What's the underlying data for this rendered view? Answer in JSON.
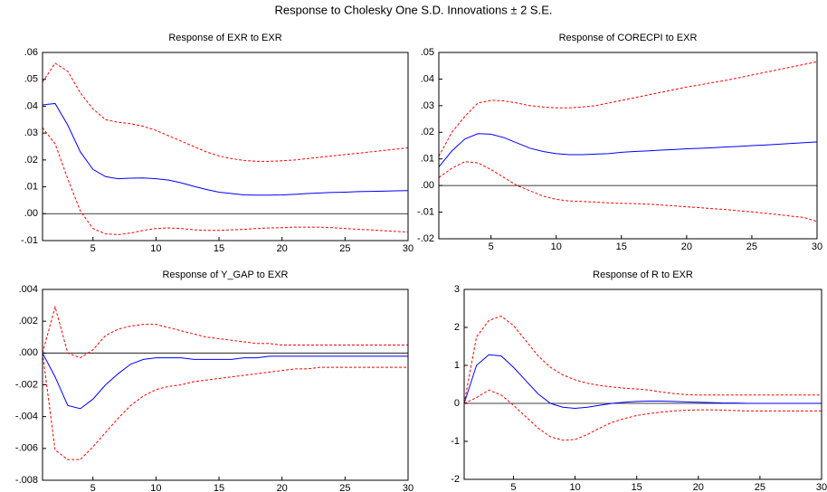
{
  "title": "Response to Cholesky One S.D. Innovations ± 2 S.E.",
  "chart_data": [
    {
      "type": "line",
      "title": "Response of EXR to EXR",
      "x": [
        1,
        2,
        3,
        4,
        5,
        6,
        7,
        8,
        9,
        10,
        11,
        12,
        13,
        14,
        15,
        16,
        17,
        18,
        19,
        20,
        21,
        22,
        23,
        24,
        25,
        26,
        27,
        28,
        29,
        30
      ],
      "xlim": [
        1,
        30
      ],
      "xticks": [
        5,
        10,
        15,
        20,
        25,
        30
      ],
      "ylim": [
        -0.01,
        0.06
      ],
      "yticks": [
        {
          "value": -0.01,
          "label": "-.01"
        },
        {
          "value": 0,
          "label": ".00"
        },
        {
          "value": 0.01,
          "label": ".01"
        },
        {
          "value": 0.02,
          "label": ".02"
        },
        {
          "value": 0.03,
          "label": ".03"
        },
        {
          "value": 0.04,
          "label": ".04"
        },
        {
          "value": 0.05,
          "label": ".05"
        },
        {
          "value": 0.06,
          "label": ".06"
        }
      ],
      "zero_line": true,
      "series": [
        {
          "color": "#0000ff",
          "dash": false,
          "values": [
            0.0405,
            0.041,
            0.033,
            0.023,
            0.0165,
            0.0138,
            0.013,
            0.0132,
            0.0133,
            0.013,
            0.0125,
            0.0115,
            0.0102,
            0.009,
            0.008,
            0.0075,
            0.007,
            0.0069,
            0.0069,
            0.007,
            0.0072,
            0.0075,
            0.0077,
            0.0079,
            0.008,
            0.0082,
            0.0083,
            0.0084,
            0.0085,
            0.0086
          ]
        },
        {
          "color": "#ff0000",
          "dash": true,
          "values": [
            0.049,
            0.056,
            0.053,
            0.045,
            0.039,
            0.035,
            0.034,
            0.0335,
            0.0325,
            0.031,
            0.029,
            0.027,
            0.025,
            0.023,
            0.0215,
            0.0205,
            0.0198,
            0.0195,
            0.0195,
            0.0197,
            0.02,
            0.0205,
            0.021,
            0.0215,
            0.022,
            0.0225,
            0.023,
            0.0235,
            0.024,
            0.0245
          ]
        },
        {
          "color": "#ff0000",
          "dash": true,
          "values": [
            0.032,
            0.026,
            0.013,
            0.001,
            -0.0055,
            -0.0075,
            -0.0078,
            -0.0072,
            -0.0062,
            -0.0055,
            -0.0053,
            -0.0055,
            -0.006,
            -0.0062,
            -0.0062,
            -0.006,
            -0.0058,
            -0.0055,
            -0.0053,
            -0.0052,
            -0.005,
            -0.005,
            -0.005,
            -0.0052,
            -0.0055,
            -0.0058,
            -0.006,
            -0.0063,
            -0.0066,
            -0.0068
          ]
        }
      ]
    },
    {
      "type": "line",
      "title": "Response of CORECPI to EXR",
      "x": [
        1,
        2,
        3,
        4,
        5,
        6,
        7,
        8,
        9,
        10,
        11,
        12,
        13,
        14,
        15,
        16,
        17,
        18,
        19,
        20,
        21,
        22,
        23,
        24,
        25,
        26,
        27,
        28,
        29,
        30
      ],
      "xlim": [
        1,
        30
      ],
      "xticks": [
        5,
        10,
        15,
        20,
        25,
        30
      ],
      "ylim": [
        -0.02,
        0.05
      ],
      "yticks": [
        {
          "value": -0.02,
          "label": "-.02"
        },
        {
          "value": -0.01,
          "label": "-.01"
        },
        {
          "value": 0,
          "label": ".00"
        },
        {
          "value": 0.01,
          "label": ".01"
        },
        {
          "value": 0.02,
          "label": ".02"
        },
        {
          "value": 0.03,
          "label": ".03"
        },
        {
          "value": 0.04,
          "label": ".04"
        },
        {
          "value": 0.05,
          "label": ".05"
        }
      ],
      "zero_line": true,
      "series": [
        {
          "color": "#0000ff",
          "dash": false,
          "values": [
            0.007,
            0.013,
            0.0175,
            0.0195,
            0.0193,
            0.018,
            0.016,
            0.014,
            0.0128,
            0.012,
            0.0116,
            0.0116,
            0.0118,
            0.012,
            0.0125,
            0.0128,
            0.013,
            0.0133,
            0.0135,
            0.0138,
            0.014,
            0.0142,
            0.0145,
            0.0147,
            0.015,
            0.0152,
            0.0155,
            0.0158,
            0.0161,
            0.0164
          ]
        },
        {
          "color": "#ff0000",
          "dash": true,
          "values": [
            0.011,
            0.02,
            0.026,
            0.031,
            0.032,
            0.0318,
            0.031,
            0.03,
            0.0295,
            0.0292,
            0.0292,
            0.0295,
            0.03,
            0.031,
            0.032,
            0.033,
            0.034,
            0.035,
            0.036,
            0.037,
            0.0378,
            0.0387,
            0.0395,
            0.0405,
            0.0415,
            0.0425,
            0.0435,
            0.0445,
            0.0455,
            0.0465
          ]
        },
        {
          "color": "#ff0000",
          "dash": true,
          "values": [
            0.003,
            0.0065,
            0.009,
            0.0085,
            0.006,
            0.003,
            0.0,
            -0.002,
            -0.004,
            -0.0052,
            -0.0058,
            -0.006,
            -0.0062,
            -0.0065,
            -0.0067,
            -0.0068,
            -0.007,
            -0.0073,
            -0.0076,
            -0.008,
            -0.0083,
            -0.0087,
            -0.009,
            -0.0095,
            -0.0099,
            -0.0104,
            -0.0109,
            -0.0115,
            -0.012,
            -0.0135
          ]
        }
      ]
    },
    {
      "type": "line",
      "title": "Response of Y_GAP to EXR",
      "x": [
        1,
        2,
        3,
        4,
        5,
        6,
        7,
        8,
        9,
        10,
        11,
        12,
        13,
        14,
        15,
        16,
        17,
        18,
        19,
        20,
        21,
        22,
        23,
        24,
        25,
        26,
        27,
        28,
        29,
        30
      ],
      "xlim": [
        1,
        30
      ],
      "xticks": [
        5,
        10,
        15,
        20,
        25,
        30
      ],
      "ylim": [
        -0.008,
        0.004
      ],
      "yticks": [
        {
          "value": -0.008,
          "label": "-.008"
        },
        {
          "value": -0.006,
          "label": "-.006"
        },
        {
          "value": -0.004,
          "label": "-.004"
        },
        {
          "value": -0.002,
          "label": "-.002"
        },
        {
          "value": 0,
          "label": ".000"
        },
        {
          "value": 0.002,
          "label": ".002"
        },
        {
          "value": 0.004,
          "label": ".004"
        }
      ],
      "zero_line": true,
      "series": [
        {
          "color": "#0000ff",
          "dash": false,
          "values": [
            0.0,
            -0.0015,
            -0.0033,
            -0.0035,
            -0.0029,
            -0.002,
            -0.0013,
            -0.0007,
            -0.0004,
            -0.0003,
            -0.0003,
            -0.0003,
            -0.0004,
            -0.0004,
            -0.0004,
            -0.0004,
            -0.0003,
            -0.0003,
            -0.0002,
            -0.0002,
            -0.0002,
            -0.0002,
            -0.0002,
            -0.0002,
            -0.0002,
            -0.0002,
            -0.0002,
            -0.0002,
            -0.0002,
            -0.0002
          ]
        },
        {
          "color": "#ff0000",
          "dash": true,
          "values": [
            0.0,
            0.0029,
            0.0,
            -0.0003,
            0.0002,
            0.0011,
            0.0015,
            0.0017,
            0.0018,
            0.0018,
            0.0016,
            0.0014,
            0.0012,
            0.001,
            0.0009,
            0.0008,
            0.0007,
            0.0006,
            0.0006,
            0.0005,
            0.0005,
            0.0005,
            0.0005,
            0.0005,
            0.0005,
            0.0005,
            0.0005,
            0.0005,
            0.0005,
            0.0005
          ]
        },
        {
          "color": "#ff0000",
          "dash": true,
          "values": [
            0.0,
            -0.0061,
            -0.0067,
            -0.0067,
            -0.0059,
            -0.005,
            -0.0041,
            -0.0033,
            -0.0027,
            -0.0023,
            -0.0021,
            -0.002,
            -0.0018,
            -0.0017,
            -0.0016,
            -0.0015,
            -0.0014,
            -0.0013,
            -0.0012,
            -0.0011,
            -0.001,
            -0.001,
            -0.0009,
            -0.0009,
            -0.0009,
            -0.0009,
            -0.0009,
            -0.0009,
            -0.0009,
            -0.0009
          ]
        }
      ]
    },
    {
      "type": "line",
      "title": "Response of R to EXR",
      "x": [
        1,
        2,
        3,
        4,
        5,
        6,
        7,
        8,
        9,
        10,
        11,
        12,
        13,
        14,
        15,
        16,
        17,
        18,
        19,
        20,
        21,
        22,
        23,
        24,
        25,
        26,
        27,
        28,
        29,
        30
      ],
      "xlim": [
        1,
        30
      ],
      "xticks": [
        5,
        10,
        15,
        20,
        25,
        30
      ],
      "ylim": [
        -2,
        3
      ],
      "yticks": [
        -2,
        -1,
        0,
        1,
        2,
        3
      ],
      "zero_line": true,
      "series": [
        {
          "color": "#0000ff",
          "dash": false,
          "values": [
            0,
            1.0,
            1.28,
            1.25,
            0.95,
            0.6,
            0.25,
            0.0,
            -0.1,
            -0.13,
            -0.1,
            -0.05,
            0.0,
            0.03,
            0.05,
            0.06,
            0.06,
            0.05,
            0.04,
            0.03,
            0.02,
            0.01,
            0.01,
            0.0,
            0.0,
            0.0,
            0.0,
            0.0,
            0.0,
            0.0
          ]
        },
        {
          "color": "#ff0000",
          "dash": true,
          "values": [
            0,
            1.75,
            2.18,
            2.3,
            2.05,
            1.65,
            1.25,
            0.95,
            0.75,
            0.62,
            0.53,
            0.47,
            0.43,
            0.4,
            0.38,
            0.35,
            0.3,
            0.26,
            0.23,
            0.22,
            0.22,
            0.22,
            0.22,
            0.22,
            0.22,
            0.22,
            0.22,
            0.22,
            0.22,
            0.22
          ]
        },
        {
          "color": "#ff0000",
          "dash": true,
          "values": [
            0,
            0.15,
            0.35,
            0.22,
            -0.05,
            -0.35,
            -0.65,
            -0.88,
            -0.97,
            -0.95,
            -0.82,
            -0.65,
            -0.5,
            -0.4,
            -0.32,
            -0.27,
            -0.23,
            -0.2,
            -0.18,
            -0.17,
            -0.17,
            -0.18,
            -0.19,
            -0.2,
            -0.2,
            -0.2,
            -0.2,
            -0.2,
            -0.2,
            -0.2
          ]
        }
      ]
    }
  ]
}
